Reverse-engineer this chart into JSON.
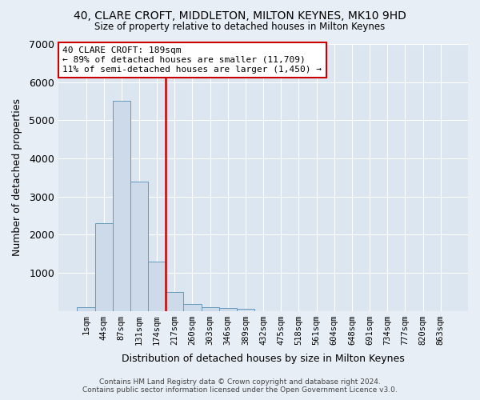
{
  "title": "40, CLARE CROFT, MIDDLETON, MILTON KEYNES, MK10 9HD",
  "subtitle": "Size of property relative to detached houses in Milton Keynes",
  "xlabel": "Distribution of detached houses by size in Milton Keynes",
  "ylabel": "Number of detached properties",
  "bin_labels": [
    "1sqm",
    "44sqm",
    "87sqm",
    "131sqm",
    "174sqm",
    "217sqm",
    "260sqm",
    "303sqm",
    "346sqm",
    "389sqm",
    "432sqm",
    "475sqm",
    "518sqm",
    "561sqm",
    "604sqm",
    "648sqm",
    "691sqm",
    "734sqm",
    "777sqm",
    "820sqm",
    "863sqm"
  ],
  "bar_heights": [
    100,
    2300,
    5500,
    3400,
    1300,
    500,
    175,
    100,
    75,
    50,
    0,
    0,
    0,
    0,
    0,
    0,
    0,
    0,
    0,
    0,
    0
  ],
  "bar_color": "#ccdaea",
  "bar_edgecolor": "#6699bb",
  "vline_color": "#cc0000",
  "annotation_title": "40 CLARE CROFT: 189sqm",
  "annotation_line1": "← 89% of detached houses are smaller (11,709)",
  "annotation_line2": "11% of semi-detached houses are larger (1,450) →",
  "annotation_box_facecolor": "#ffffff",
  "annotation_box_edgecolor": "#cc0000",
  "ylim": [
    0,
    7000
  ],
  "yticks": [
    0,
    1000,
    2000,
    3000,
    4000,
    5000,
    6000,
    7000
  ],
  "plot_bg_color": "#dce6f0",
  "fig_bg_color": "#e8eef5",
  "footer1": "Contains HM Land Registry data © Crown copyright and database right 2024.",
  "footer2": "Contains public sector information licensed under the Open Government Licence v3.0."
}
